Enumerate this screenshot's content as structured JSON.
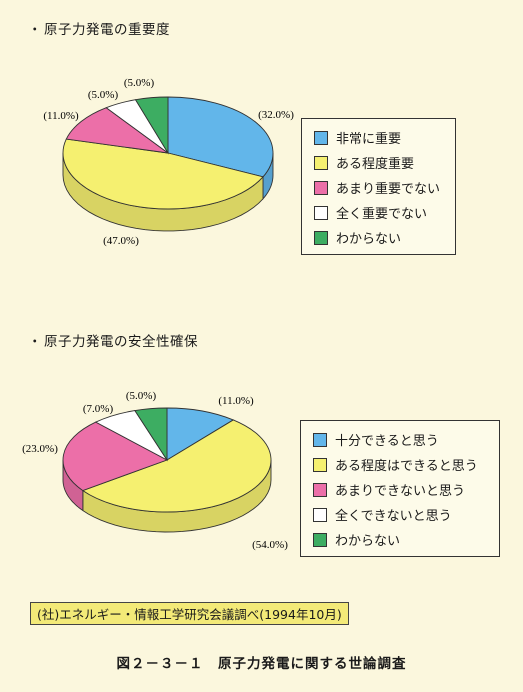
{
  "chart_data": [
    {
      "type": "pie",
      "title": "原子力発電の重要度",
      "title_prefix": "・",
      "categories": [
        "非常に重要",
        "ある程度重要",
        "あまり重要でない",
        "全く重要でない",
        "わからない"
      ],
      "values": [
        32.0,
        47.0,
        11.0,
        5.0,
        5.0
      ],
      "value_labels": [
        "(32.0%)",
        "(47.0%)",
        "(11.0%)",
        "(5.0%)",
        "(5.0%)"
      ],
      "colors": [
        "#62b6ea",
        "#f5f070",
        "#ec6fa8",
        "#ffffff",
        "#3dad62"
      ],
      "legend_position": "right",
      "style": "3d"
    },
    {
      "type": "pie",
      "title": "原子力発電の安全性確保",
      "title_prefix": "・",
      "categories": [
        "十分できると思う",
        "ある程度はできると思う",
        "あまりできないと思う",
        "全くできないと思う",
        "わからない"
      ],
      "values": [
        11.0,
        54.0,
        23.0,
        7.0,
        5.0
      ],
      "value_labels": [
        "(11.0%)",
        "(54.0%)",
        "(23.0%)",
        "(7.0%)",
        "(5.0%)"
      ],
      "colors": [
        "#62b6ea",
        "#f5f070",
        "#ec6fa8",
        "#ffffff",
        "#3dad62"
      ],
      "legend_position": "right",
      "style": "3d"
    }
  ],
  "source": "(社)エネルギー・情報工学研究会議調べ(1994年10月)",
  "caption": "図２－３－１　原子力発電に関する世論調査"
}
